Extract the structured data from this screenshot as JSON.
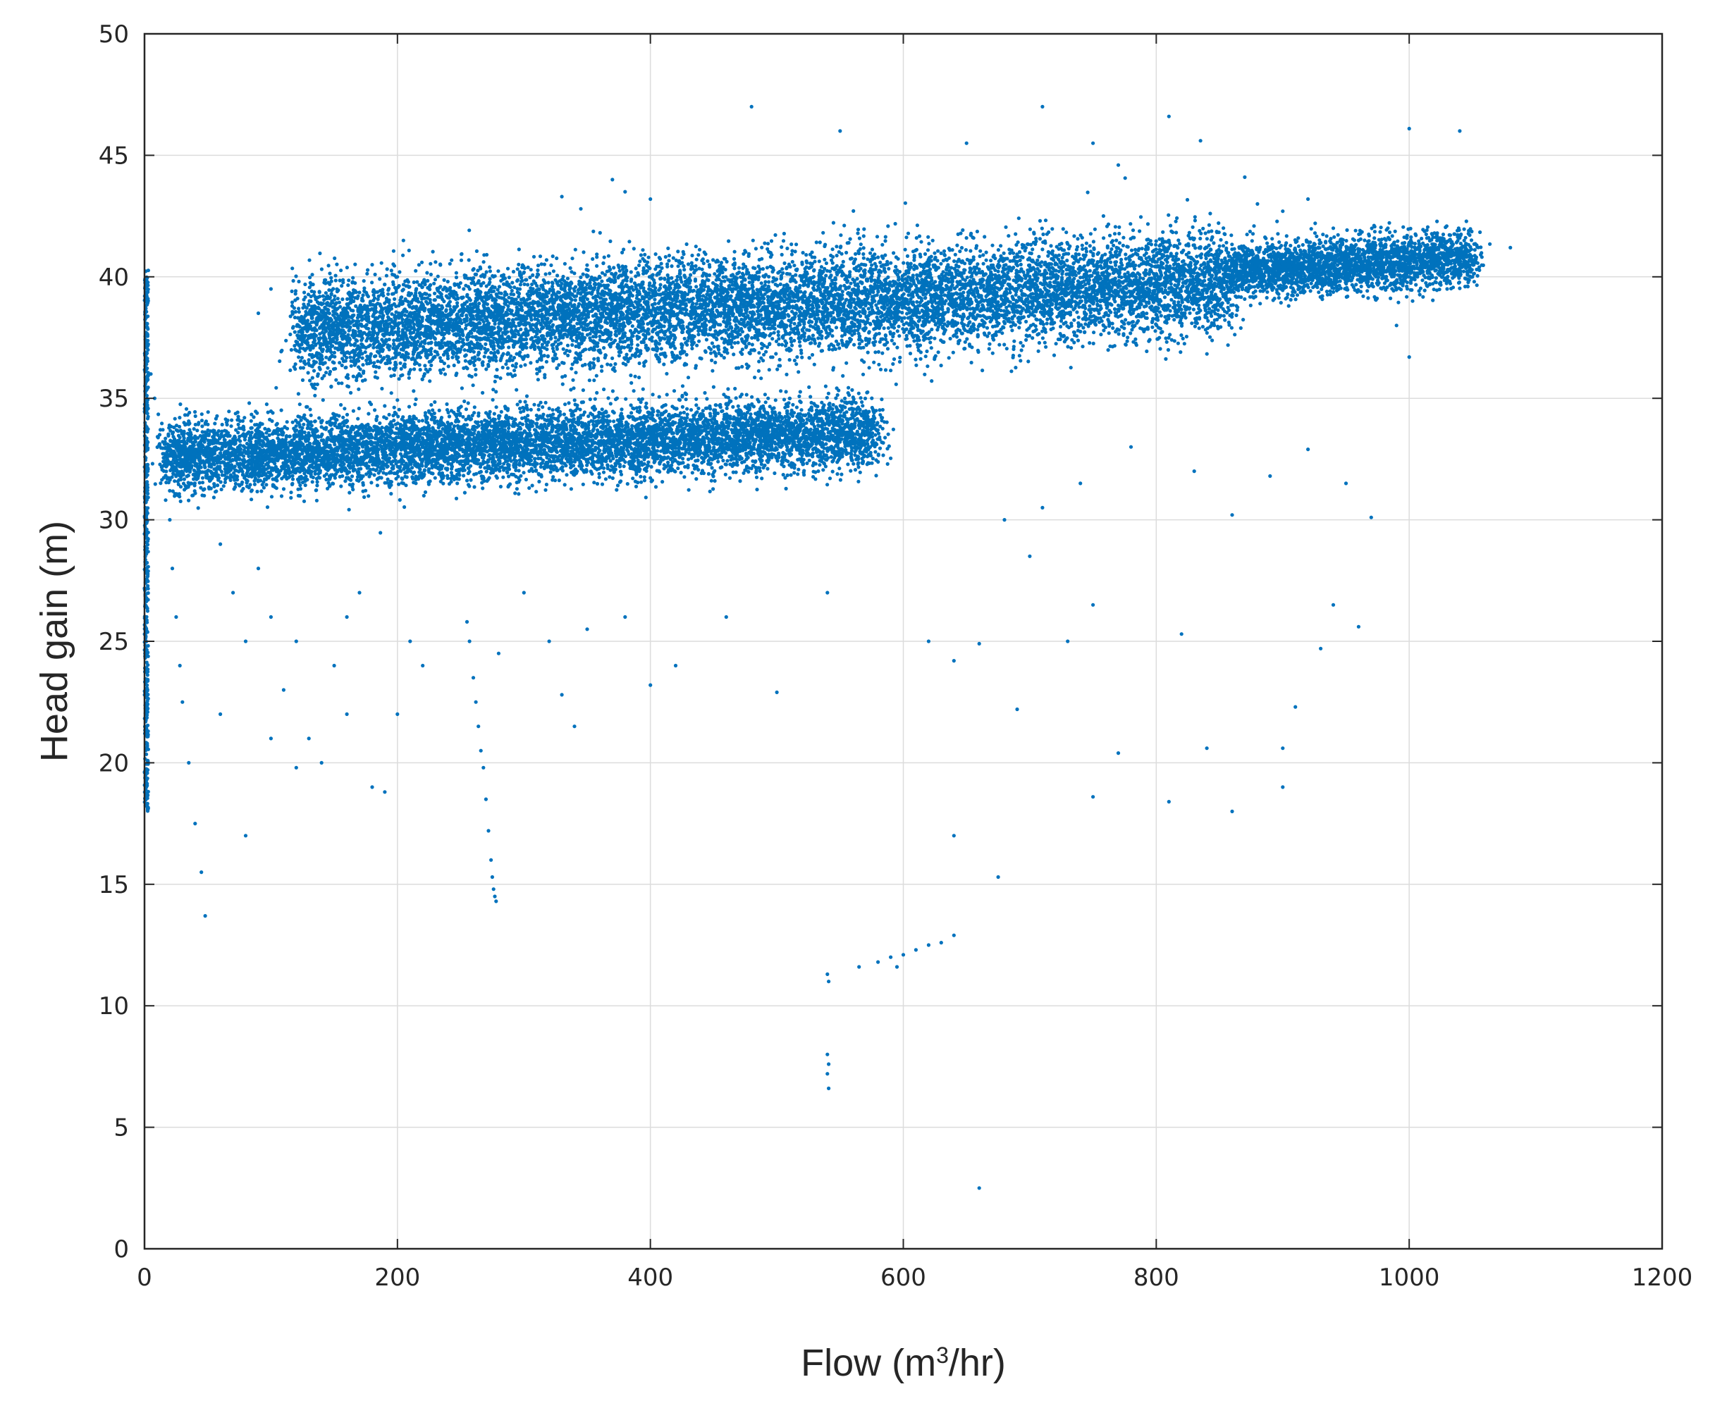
{
  "chart_data": {
    "type": "scatter",
    "xlabel": "Flow (m³/hr)",
    "ylabel": "Head gain (m)",
    "xlabel_parts": {
      "before": "Flow (m",
      "sup": "3",
      "after": "/hr)"
    },
    "xlim": [
      0,
      1200
    ],
    "ylim": [
      0,
      50
    ],
    "xticks": [
      "0",
      "200",
      "400",
      "600",
      "800",
      "1000",
      "1200"
    ],
    "yticks": [
      "0",
      "5",
      "10",
      "15",
      "20",
      "25",
      "30",
      "35",
      "40",
      "45",
      "50"
    ],
    "xtick_values": [
      0,
      200,
      400,
      600,
      800,
      1000,
      1200
    ],
    "ytick_values": [
      0,
      5,
      10,
      15,
      20,
      25,
      30,
      35,
      40,
      45,
      50
    ],
    "grid": true,
    "marker_color": "#0072BD",
    "dense_regions": [
      {
        "name": "upper band",
        "x_range": [
          120,
          860
        ],
        "y_center_at_x_start": 37.8,
        "y_center_at_x_end": 39.8,
        "y_spread": 1.9
      },
      {
        "name": "lower band",
        "x_range": [
          15,
          580
        ],
        "y_center_at_x_start": 32.6,
        "y_center_at_x_end": 33.6,
        "y_spread": 1.3
      },
      {
        "name": "upper tail",
        "x_range": [
          860,
          1050
        ],
        "y_center_at_x_start": 40.2,
        "y_center_at_x_end": 40.8,
        "y_spread": 1.0
      },
      {
        "name": "zero-flow column",
        "x_range": [
          0,
          3
        ],
        "y_range": [
          18,
          40.5
        ]
      }
    ],
    "series": [
      {
        "points": [
          [
            5,
            36
          ],
          [
            8,
            35
          ],
          [
            12,
            33.5
          ],
          [
            20,
            30
          ],
          [
            22,
            28
          ],
          [
            25,
            26
          ],
          [
            28,
            24
          ],
          [
            30,
            22.5
          ],
          [
            35,
            20
          ],
          [
            40,
            17.5
          ],
          [
            45,
            15.5
          ],
          [
            48,
            13.7
          ],
          [
            60,
            29
          ],
          [
            70,
            27
          ],
          [
            80,
            25
          ],
          [
            90,
            28
          ],
          [
            100,
            26
          ],
          [
            110,
            23
          ],
          [
            120,
            25
          ],
          [
            130,
            21
          ],
          [
            140,
            20
          ],
          [
            150,
            24
          ],
          [
            160,
            22
          ],
          [
            170,
            27
          ],
          [
            180,
            19
          ],
          [
            190,
            18.8
          ],
          [
            200,
            22
          ],
          [
            210,
            25
          ],
          [
            220,
            24
          ],
          [
            60,
            22
          ],
          [
            80,
            17
          ],
          [
            100,
            21
          ],
          [
            120,
            19.8
          ],
          [
            160,
            26
          ],
          [
            255,
            25.8
          ],
          [
            257,
            25
          ],
          [
            260,
            23.5
          ],
          [
            262,
            22.5
          ],
          [
            264,
            21.5
          ],
          [
            266,
            20.5
          ],
          [
            268,
            19.8
          ],
          [
            270,
            18.5
          ],
          [
            272,
            17.2
          ],
          [
            274,
            16
          ],
          [
            275,
            15.3
          ],
          [
            276,
            14.8
          ],
          [
            277,
            14.5
          ],
          [
            278,
            14.3
          ],
          [
            280,
            24.5
          ],
          [
            300,
            27
          ],
          [
            320,
            25
          ],
          [
            340,
            21.5
          ],
          [
            330,
            22.8
          ],
          [
            350,
            25.5
          ],
          [
            380,
            26
          ],
          [
            400,
            23.2
          ],
          [
            420,
            24
          ],
          [
            460,
            26
          ],
          [
            500,
            22.9
          ],
          [
            540,
            27
          ],
          [
            540,
            11.3
          ],
          [
            541,
            11
          ],
          [
            540,
            8
          ],
          [
            541,
            7.6
          ],
          [
            540,
            7.2
          ],
          [
            541,
            6.6
          ],
          [
            565,
            11.6
          ],
          [
            580,
            11.8
          ],
          [
            590,
            12
          ],
          [
            595,
            11.6
          ],
          [
            600,
            12.1
          ],
          [
            610,
            12.3
          ],
          [
            620,
            12.5
          ],
          [
            630,
            12.6
          ],
          [
            640,
            12.9
          ],
          [
            640,
            17
          ],
          [
            660,
            2.5
          ],
          [
            675,
            15.3
          ],
          [
            690,
            22.2
          ],
          [
            700,
            28.5
          ],
          [
            730,
            25
          ],
          [
            750,
            26.5
          ],
          [
            770,
            20.4
          ],
          [
            750,
            18.6
          ],
          [
            810,
            18.4
          ],
          [
            820,
            25.3
          ],
          [
            840,
            20.6
          ],
          [
            860,
            18
          ],
          [
            900,
            20.6
          ],
          [
            900,
            19
          ],
          [
            910,
            22.3
          ],
          [
            930,
            24.7
          ],
          [
            940,
            26.5
          ],
          [
            960,
            25.6
          ],
          [
            970,
            30.1
          ],
          [
            950,
            31.5
          ],
          [
            620,
            25
          ],
          [
            640,
            24.2
          ],
          [
            660,
            24.9
          ],
          [
            680,
            30
          ],
          [
            710,
            30.5
          ],
          [
            740,
            31.5
          ],
          [
            780,
            33
          ],
          [
            830,
            32
          ],
          [
            860,
            30.2
          ],
          [
            890,
            31.8
          ],
          [
            920,
            32.9
          ],
          [
            480,
            47
          ],
          [
            550,
            46
          ],
          [
            650,
            45.5
          ],
          [
            710,
            47
          ],
          [
            750,
            45.5
          ],
          [
            770,
            44.6
          ],
          [
            810,
            46.6
          ],
          [
            835,
            45.6
          ],
          [
            1000,
            46.1
          ],
          [
            1040,
            46
          ],
          [
            870,
            44.1
          ],
          [
            880,
            43
          ],
          [
            900,
            42.7
          ],
          [
            920,
            43.2
          ],
          [
            940,
            42
          ],
          [
            960,
            41.5
          ],
          [
            980,
            41.2
          ],
          [
            1000,
            40.8
          ],
          [
            1020,
            41.8
          ],
          [
            1040,
            40.2
          ],
          [
            1050,
            40
          ],
          [
            1080,
            41.2
          ],
          [
            990,
            38
          ],
          [
            1000,
            36.7
          ],
          [
            1030,
            39.5
          ],
          [
            370,
            44
          ],
          [
            380,
            43.5
          ],
          [
            400,
            43.2
          ],
          [
            330,
            43.3
          ],
          [
            345,
            42.8
          ],
          [
            180,
            40.5
          ],
          [
            100,
            39.5
          ],
          [
            90,
            38.5
          ]
        ]
      }
    ]
  }
}
